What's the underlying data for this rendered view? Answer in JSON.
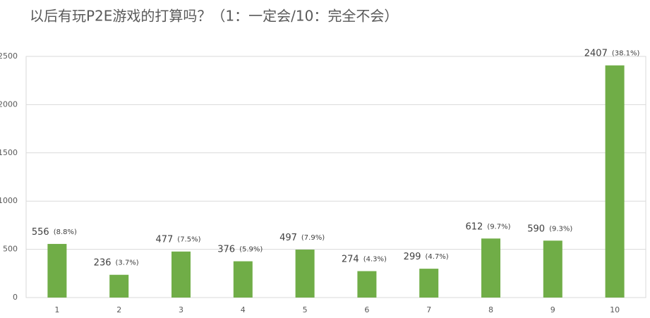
{
  "chart_data": {
    "type": "bar",
    "title": "以后有玩P2E游戏的打算吗？（1：一定会/10：完全不会）",
    "categories": [
      "1",
      "2",
      "3",
      "4",
      "5",
      "6",
      "7",
      "8",
      "9",
      "10"
    ],
    "values": [
      556,
      236,
      477,
      376,
      497,
      274,
      299,
      612,
      590,
      2407
    ],
    "percent_labels": [
      "(8.8%)",
      "(3.7%)",
      "(7.5%)",
      "(5.9%)",
      "(7.9%)",
      "(4.3%)",
      "(4.7%)",
      "(9.7%)",
      "(9.3%)",
      "(38.1%)"
    ],
    "color": "#70ad47",
    "ylim": [
      0,
      2500
    ],
    "yticks": [
      0,
      500,
      1000,
      1500,
      2000,
      2500
    ],
    "grid": true
  }
}
